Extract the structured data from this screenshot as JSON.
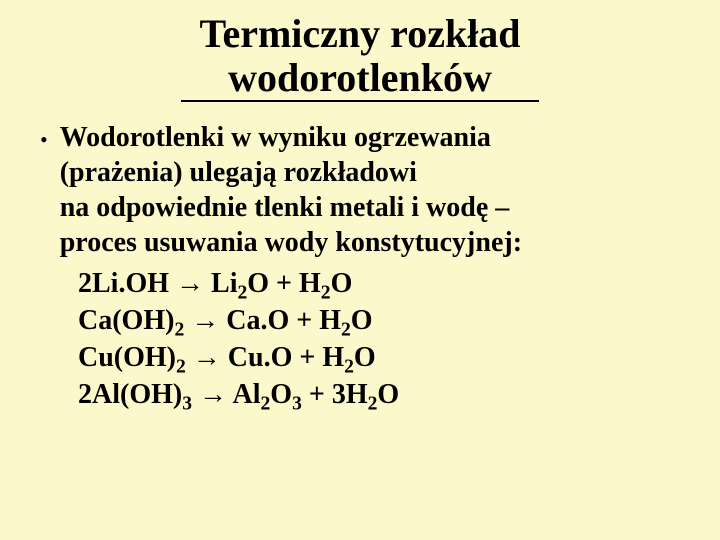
{
  "colors": {
    "background": "#fbf9cb",
    "text": "#000000",
    "underline": "#000000"
  },
  "typography": {
    "family": "Times New Roman",
    "title_fontsize": 40,
    "body_fontsize": 28,
    "title_weight": "bold",
    "body_weight": "bold"
  },
  "title": {
    "line1": "Termiczny rozkład",
    "line2": "wodorotlenków"
  },
  "bullet": {
    "marker": "•",
    "line1": "Wodorotlenki w wyniku ogrzewania",
    "line2": "(prażenia) ulegają rozkładowi",
    "line3": "na odpowiednie tlenki metali i wodę –",
    "line4": "proces usuwania wody konstytucyjnej:"
  },
  "formula_parts": {
    "arrow": "→",
    "eq1_l_a": "2Li.OH ",
    "eq1_r_a": " Li",
    "eq1_r_s1": "2",
    "eq1_r_b": "O + H",
    "eq1_r_s2": "2",
    "eq1_r_c": "O",
    "eq2_l_a": "Ca(OH)",
    "eq2_l_s1": "2",
    "eq2_l_b": " ",
    "eq2_r_a": " Ca.O + H",
    "eq2_r_s1": "2",
    "eq2_r_b": "O",
    "eq3_l_a": "Cu(OH)",
    "eq3_l_s1": "2",
    "eq3_l_b": " ",
    "eq3_r_a": " Cu.O + H",
    "eq3_r_s1": "2",
    "eq3_r_b": "O",
    "eq4_l_a": "2Al(OH)",
    "eq4_l_s1": "3",
    "eq4_l_b": " ",
    "eq4_r_a": " Al",
    "eq4_r_s1": "2",
    "eq4_r_b": "O",
    "eq4_r_s2": "3",
    "eq4_r_c": " + 3H",
    "eq4_r_s3": "2",
    "eq4_r_d": "O"
  }
}
